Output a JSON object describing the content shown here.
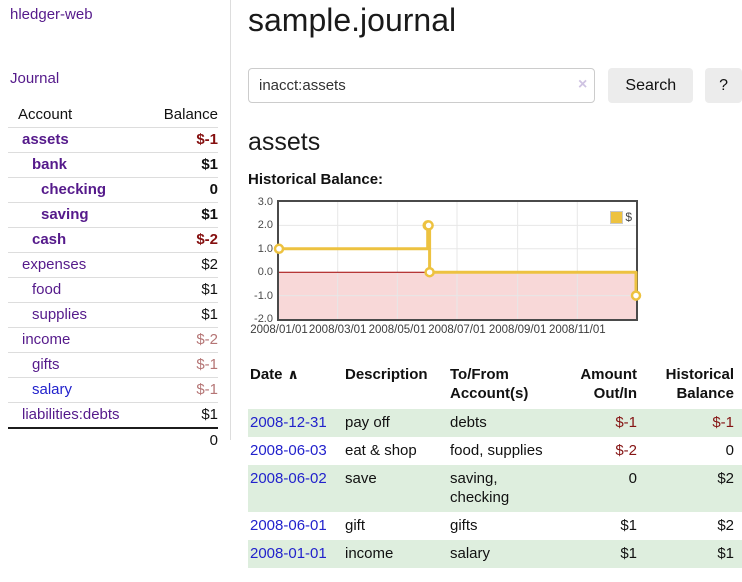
{
  "app": {
    "title": "hledger-web",
    "nav_journal": "Journal"
  },
  "sidebar": {
    "columns": {
      "account": "Account",
      "balance": "Balance"
    },
    "accounts": [
      {
        "name": "assets",
        "balance": "$-1",
        "level": 1,
        "bold": true,
        "negative": true,
        "muted": false,
        "blue": false
      },
      {
        "name": "bank",
        "balance": "$1",
        "level": 2,
        "bold": true,
        "negative": false,
        "muted": false,
        "blue": false
      },
      {
        "name": "checking",
        "balance": "0",
        "level": 3,
        "bold": true,
        "negative": false,
        "muted": false,
        "blue": false
      },
      {
        "name": "saving",
        "balance": "$1",
        "level": 3,
        "bold": true,
        "negative": false,
        "muted": false,
        "blue": false
      },
      {
        "name": "cash",
        "balance": "$-2",
        "level": 2,
        "bold": true,
        "negative": true,
        "muted": false,
        "blue": false
      },
      {
        "name": "expenses",
        "balance": "$2",
        "level": 1,
        "bold": false,
        "negative": false,
        "muted": false,
        "blue": false
      },
      {
        "name": "food",
        "balance": "$1",
        "level": 2,
        "bold": false,
        "negative": false,
        "muted": false,
        "blue": false
      },
      {
        "name": "supplies",
        "balance": "$1",
        "level": 2,
        "bold": false,
        "negative": false,
        "muted": false,
        "blue": false
      },
      {
        "name": "income",
        "balance": "$-2",
        "level": 1,
        "bold": false,
        "negative": true,
        "muted": true,
        "blue": false
      },
      {
        "name": "gifts",
        "balance": "$-1",
        "level": 2,
        "bold": false,
        "negative": true,
        "muted": true,
        "blue": false
      },
      {
        "name": "salary",
        "balance": "$-1",
        "level": 2,
        "bold": false,
        "negative": true,
        "muted": true,
        "blue": true
      },
      {
        "name": "liabilities:debts",
        "balance": "$1",
        "level": 1,
        "bold": false,
        "negative": false,
        "muted": false,
        "blue": false
      }
    ],
    "total": "0"
  },
  "header": {
    "title": "sample.journal"
  },
  "search": {
    "value": "inacct:assets",
    "clear_icon": "×",
    "button_label": "Search",
    "help_label": "?"
  },
  "account_page": {
    "heading": "assets",
    "chart_label": "Historical Balance:"
  },
  "chart_data": {
    "type": "line",
    "step": true,
    "title": "Historical Balance",
    "series": [
      {
        "name": "$",
        "color": "#edc240",
        "points": [
          [
            "2008-01-01",
            1
          ],
          [
            "2008-06-01",
            2
          ],
          [
            "2008-06-02",
            2
          ],
          [
            "2008-06-03",
            0
          ],
          [
            "2008-12-31",
            -1
          ]
        ]
      }
    ],
    "xlim": [
      "2008-01-01",
      "2008-12-31"
    ],
    "ylim": [
      -2,
      3
    ],
    "yticks": [
      {
        "label": "3.0",
        "value": 3
      },
      {
        "label": "2.0",
        "value": 2
      },
      {
        "label": "1.0",
        "value": 1
      },
      {
        "label": "0.0",
        "value": 0
      },
      {
        "label": "-1.0",
        "value": -1
      },
      {
        "label": "-2.0",
        "value": -2
      }
    ],
    "xticks": [
      {
        "label": "2008/01/01",
        "date": "2008-01-01"
      },
      {
        "label": "2008/03/01",
        "date": "2008-03-01"
      },
      {
        "label": "2008/05/01",
        "date": "2008-05-01"
      },
      {
        "label": "2008/07/01",
        "date": "2008-07-01"
      },
      {
        "label": "2008/09/01",
        "date": "2008-09-01"
      },
      {
        "label": "2008/11/01",
        "date": "2008-11-01"
      }
    ],
    "grid": true,
    "legend_position": "top-right",
    "negative_region_color": "#f8d8d8",
    "zero_line_color": "#a00000",
    "grid_color": "#e7e7e7",
    "border_color": "#4a4a4a"
  },
  "register": {
    "columns": {
      "date": "Date",
      "sort_icon": "∧",
      "description": "Description",
      "account_line1": "To/From",
      "account_line2": "Account(s)",
      "amount_line1": "Amount",
      "amount_line2": "Out/In",
      "balance_line1": "Historical",
      "balance_line2": "Balance"
    },
    "rows": [
      {
        "date": "2008-12-31",
        "description": "pay off",
        "accounts": "debts",
        "amount": "$-1",
        "balance": "$-1",
        "amount_negative": true,
        "balance_negative": true
      },
      {
        "date": "2008-06-03",
        "description": "eat & shop",
        "accounts": "food, supplies",
        "amount": "$-2",
        "balance": "0",
        "amount_negative": true,
        "balance_negative": false
      },
      {
        "date": "2008-06-02",
        "description": "save",
        "accounts": "saving, checking",
        "amount": "0",
        "balance": "$2",
        "amount_negative": false,
        "balance_negative": false
      },
      {
        "date": "2008-06-01",
        "description": "gift",
        "accounts": "gifts",
        "amount": "$1",
        "balance": "$2",
        "amount_negative": false,
        "balance_negative": false
      },
      {
        "date": "2008-01-01",
        "description": "income",
        "accounts": "salary",
        "amount": "$1",
        "balance": "$1",
        "amount_negative": false,
        "balance_negative": false
      }
    ]
  },
  "colors": {
    "link_purple": "#551a8b",
    "link_blue": "#2222cc",
    "negative_dark": "#850f0f",
    "negative_muted": "#b57575",
    "row_green": "#deeede",
    "series_gold": "#edc240"
  }
}
